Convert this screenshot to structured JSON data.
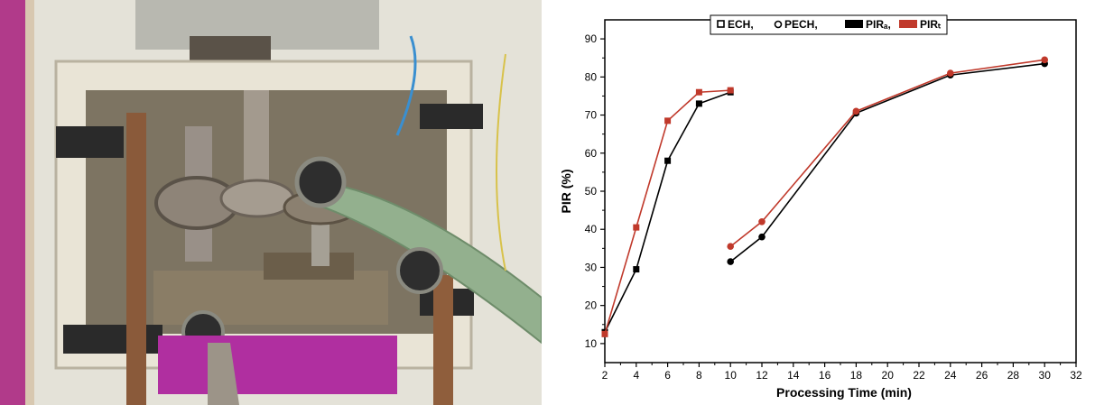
{
  "chart_data": {
    "type": "line",
    "xlabel": "Processing Time (min)",
    "ylabel": "PIR (%)",
    "xlim": [
      2,
      32
    ],
    "ylim": [
      5,
      95
    ],
    "xticks": [
      2,
      4,
      6,
      8,
      10,
      12,
      14,
      16,
      18,
      20,
      22,
      24,
      26,
      28,
      30,
      32
    ],
    "yticks": [
      10,
      20,
      30,
      40,
      50,
      60,
      70,
      80,
      90
    ],
    "legend": {
      "placement": "top-center",
      "entries": [
        "ECH,",
        "PECH,",
        "PIRₐ,",
        "PIRₜ"
      ]
    },
    "series": [
      {
        "group": "ECH",
        "kind": "PIRa",
        "marker": "square",
        "color": "#000000",
        "x": [
          2,
          4,
          6,
          8,
          10
        ],
        "values": [
          13,
          29.5,
          58,
          73,
          76
        ]
      },
      {
        "group": "ECH",
        "kind": "PIRt",
        "marker": "square",
        "color": "#c0392b",
        "x": [
          2,
          4,
          6,
          8,
          10
        ],
        "values": [
          12.5,
          40.5,
          68.5,
          76,
          76.5
        ]
      },
      {
        "group": "PECH",
        "kind": "PIRa",
        "marker": "circle",
        "color": "#000000",
        "x": [
          10,
          12,
          18,
          24,
          30
        ],
        "values": [
          31.5,
          38,
          70.5,
          80.5,
          83.5
        ]
      },
      {
        "group": "PECH",
        "kind": "PIRt",
        "marker": "circle",
        "color": "#c0392b",
        "x": [
          10,
          12,
          18,
          24,
          30
        ],
        "values": [
          35.5,
          42,
          71,
          81,
          84.5
        ]
      }
    ]
  },
  "photo": {
    "subject": "experimental-gear-rig-photo",
    "colors": {
      "frame": "#d9d4c4",
      "plate": "#7a6e58",
      "hose": "#8fae8a",
      "magenta": "#b22a8e",
      "rod": "#8a5a3a"
    }
  }
}
